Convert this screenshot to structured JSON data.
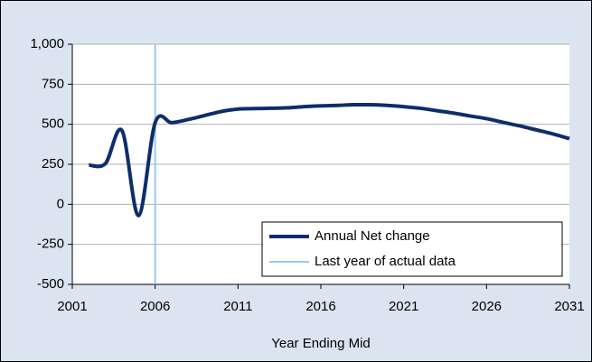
{
  "chart_data": {
    "type": "line",
    "x_label": "Year Ending Mid",
    "x": [
      2002,
      2003,
      2004,
      2005,
      2006,
      2007,
      2008,
      2009,
      2010,
      2011,
      2012,
      2013,
      2014,
      2015,
      2016,
      2017,
      2018,
      2019,
      2020,
      2021,
      2022,
      2023,
      2024,
      2025,
      2026,
      2027,
      2028,
      2029,
      2030,
      2031
    ],
    "series": [
      {
        "name": "Annual Net change",
        "color": "#0d2d6b",
        "values": [
          245,
          255,
          460,
          -70,
          510,
          510,
          530,
          555,
          580,
          595,
          598,
          600,
          603,
          610,
          615,
          618,
          622,
          622,
          618,
          610,
          600,
          585,
          570,
          552,
          535,
          512,
          490,
          465,
          440,
          410
        ]
      },
      {
        "name": "Last year of actual data",
        "color": "#99c9f0",
        "x": [
          2006,
          2006
        ],
        "values": [
          -500,
          1000
        ]
      }
    ],
    "xlim": [
      2001,
      2031
    ],
    "xticks": [
      2001,
      2006,
      2011,
      2016,
      2021,
      2026,
      2031
    ],
    "ylim": [
      -500,
      1000
    ],
    "yticks": [
      -500,
      -250,
      0,
      250,
      500,
      750,
      {
        "value": 1000,
        "label": "1,000"
      }
    ],
    "grid": true,
    "legend": "lower right"
  }
}
